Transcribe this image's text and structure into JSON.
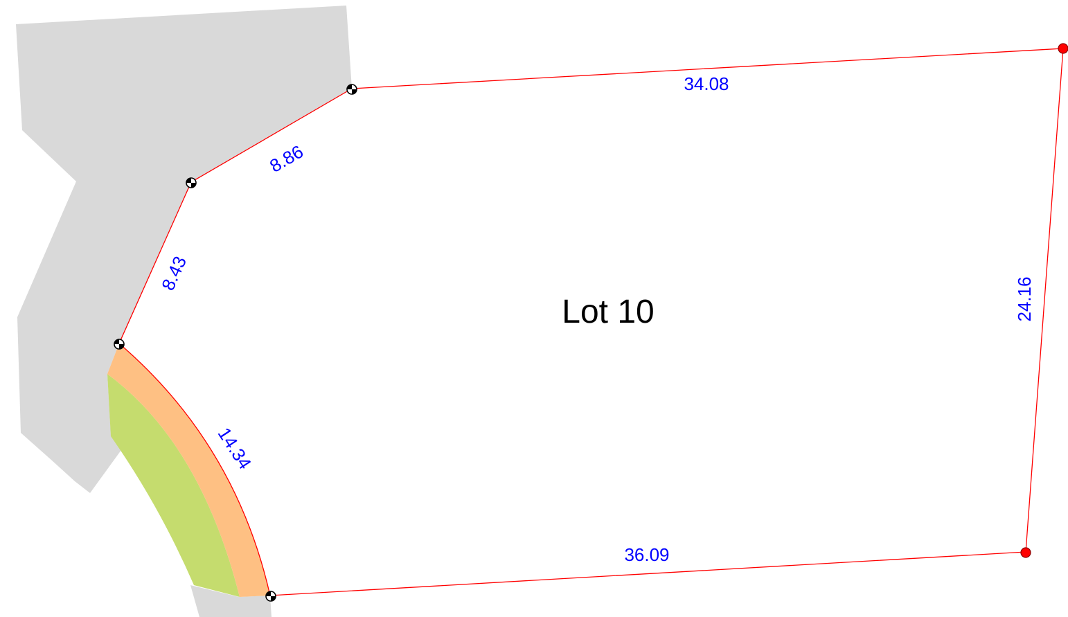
{
  "lot": {
    "label": "Lot 10"
  },
  "dimensions": {
    "north_boundary": "34.08",
    "east_boundary": "24.16",
    "south_boundary": "36.09",
    "arc_boundary": "14.34",
    "upper_splay": "8.86",
    "lower_splay": "8.43"
  },
  "legend_colors": {
    "road_reserve": "#d9d9d9",
    "footpath": "#fec083",
    "verge": "#c5dc6e",
    "boundary_line": "#ff0000",
    "dimension_text": "#0000ff"
  },
  "markers": {
    "survey_peg_icon": "survey-peg-icon",
    "corner_point_icon": "red-corner-dot-icon"
  }
}
